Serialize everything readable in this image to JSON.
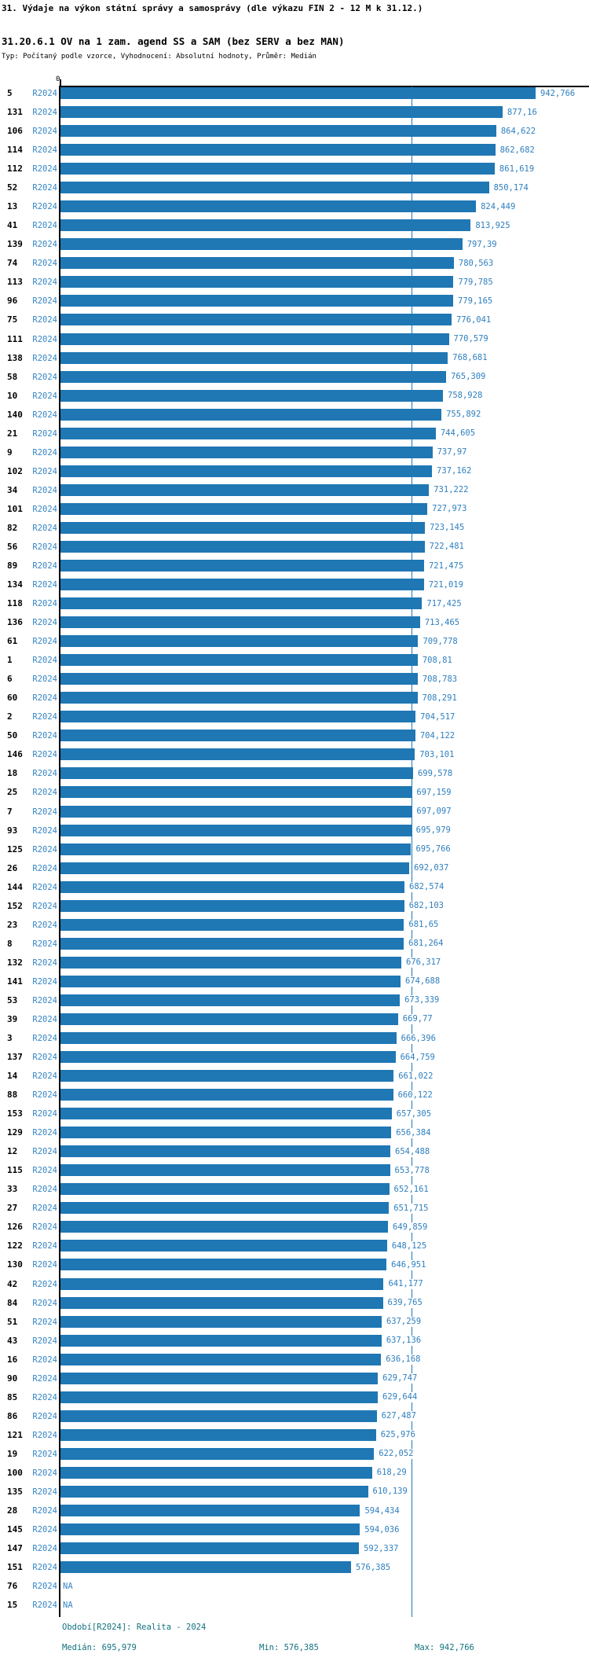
{
  "header": {
    "title": "31. Výdaje na výkon státní správy a samosprávy (dle výkazu FIN 2 - 12 M k 31.12.)",
    "subtitle": "31.20.6.1 OV na 1 zam. agend SS a SAM (bez SERV a bez MAN)",
    "meta": "Typ: Počítaný podle vzorce, Vyhodnocení: Absolutní hodnoty, Průměr: Medián"
  },
  "chart_data": {
    "type": "bar",
    "orientation": "horizontal",
    "x_axis_ticks": [
      "0"
    ],
    "period_label": "R2024",
    "na_label": "NA",
    "bar_color": "#1f77b4",
    "median_line_color": "#1f77b4",
    "median": 695.979,
    "min": 576.385,
    "max": 942.766,
    "decimal_separator": ",",
    "rows": [
      {
        "id": "5",
        "value": 942.766
      },
      {
        "id": "131",
        "value": 877.16
      },
      {
        "id": "106",
        "value": 864.622
      },
      {
        "id": "114",
        "value": 862.682
      },
      {
        "id": "112",
        "value": 861.619
      },
      {
        "id": "52",
        "value": 850.174
      },
      {
        "id": "13",
        "value": 824.449
      },
      {
        "id": "41",
        "value": 813.925
      },
      {
        "id": "139",
        "value": 797.39
      },
      {
        "id": "74",
        "value": 780.563
      },
      {
        "id": "113",
        "value": 779.785
      },
      {
        "id": "96",
        "value": 779.165
      },
      {
        "id": "75",
        "value": 776.041
      },
      {
        "id": "111",
        "value": 770.579
      },
      {
        "id": "138",
        "value": 768.681
      },
      {
        "id": "58",
        "value": 765.309
      },
      {
        "id": "10",
        "value": 758.928
      },
      {
        "id": "140",
        "value": 755.892
      },
      {
        "id": "21",
        "value": 744.605
      },
      {
        "id": "9",
        "value": 737.97
      },
      {
        "id": "102",
        "value": 737.162
      },
      {
        "id": "34",
        "value": 731.222
      },
      {
        "id": "101",
        "value": 727.973
      },
      {
        "id": "82",
        "value": 723.145
      },
      {
        "id": "56",
        "value": 722.481
      },
      {
        "id": "89",
        "value": 721.475
      },
      {
        "id": "134",
        "value": 721.019
      },
      {
        "id": "118",
        "value": 717.425
      },
      {
        "id": "136",
        "value": 713.465
      },
      {
        "id": "61",
        "value": 709.778
      },
      {
        "id": "1",
        "value": 708.81
      },
      {
        "id": "6",
        "value": 708.783
      },
      {
        "id": "60",
        "value": 708.291
      },
      {
        "id": "2",
        "value": 704.517
      },
      {
        "id": "50",
        "value": 704.122
      },
      {
        "id": "146",
        "value": 703.101
      },
      {
        "id": "18",
        "value": 699.578
      },
      {
        "id": "25",
        "value": 697.159
      },
      {
        "id": "7",
        "value": 697.097
      },
      {
        "id": "93",
        "value": 695.979
      },
      {
        "id": "125",
        "value": 695.766
      },
      {
        "id": "26",
        "value": 692.037
      },
      {
        "id": "144",
        "value": 682.574
      },
      {
        "id": "152",
        "value": 682.103
      },
      {
        "id": "23",
        "value": 681.65
      },
      {
        "id": "8",
        "value": 681.264
      },
      {
        "id": "132",
        "value": 676.317
      },
      {
        "id": "141",
        "value": 674.688
      },
      {
        "id": "53",
        "value": 673.339
      },
      {
        "id": "39",
        "value": 669.77
      },
      {
        "id": "3",
        "value": 666.396
      },
      {
        "id": "137",
        "value": 664.759
      },
      {
        "id": "14",
        "value": 661.022
      },
      {
        "id": "88",
        "value": 660.122
      },
      {
        "id": "153",
        "value": 657.305
      },
      {
        "id": "129",
        "value": 656.384
      },
      {
        "id": "12",
        "value": 654.488
      },
      {
        "id": "115",
        "value": 653.778
      },
      {
        "id": "33",
        "value": 652.161
      },
      {
        "id": "27",
        "value": 651.715
      },
      {
        "id": "126",
        "value": 649.859
      },
      {
        "id": "122",
        "value": 648.125
      },
      {
        "id": "130",
        "value": 646.951
      },
      {
        "id": "42",
        "value": 641.177
      },
      {
        "id": "84",
        "value": 639.765
      },
      {
        "id": "51",
        "value": 637.259
      },
      {
        "id": "43",
        "value": 637.136
      },
      {
        "id": "16",
        "value": 636.168
      },
      {
        "id": "90",
        "value": 629.747
      },
      {
        "id": "85",
        "value": 629.644
      },
      {
        "id": "86",
        "value": 627.487
      },
      {
        "id": "121",
        "value": 625.976
      },
      {
        "id": "19",
        "value": 622.052
      },
      {
        "id": "100",
        "value": 618.29
      },
      {
        "id": "135",
        "value": 610.139
      },
      {
        "id": "28",
        "value": 594.434
      },
      {
        "id": "145",
        "value": 594.036
      },
      {
        "id": "147",
        "value": 592.337
      },
      {
        "id": "151",
        "value": 576.385
      },
      {
        "id": "76",
        "value": null
      },
      {
        "id": "15",
        "value": null
      }
    ]
  },
  "footer": {
    "period_line": "Období[R2024]: Realita - 2024",
    "median_label": "Medián: 695,979",
    "min_label": "Min: 576,385",
    "max_label": "Max: 942,766"
  }
}
